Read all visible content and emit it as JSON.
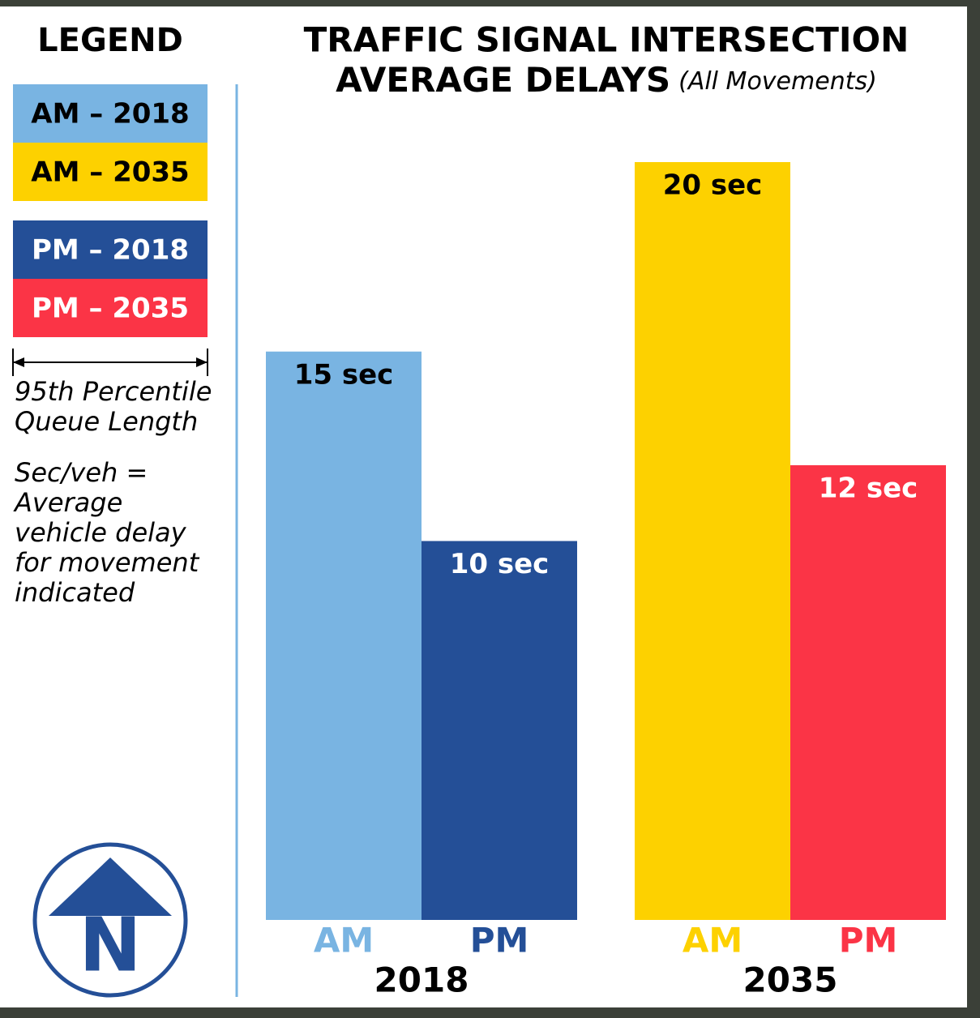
{
  "chart_data": {
    "type": "bar",
    "title": [
      "TRAFFIC SIGNAL INTERSECTION",
      "AVERAGE DELAYS"
    ],
    "subtitle": "(All Movements)",
    "categories": [
      "2018",
      "2035"
    ],
    "series": [
      {
        "name": "AM – 2018",
        "label": "AM",
        "color": "#79b4e2",
        "label_color": "#000000",
        "values": [
          15,
          null
        ],
        "value_labels": [
          "15 sec",
          null
        ]
      },
      {
        "name": "AM – 2035",
        "label": "AM",
        "color": "#fdd100",
        "label_color": "#000000",
        "values": [
          null,
          20
        ],
        "value_labels": [
          null,
          "20 sec"
        ]
      },
      {
        "name": "PM – 2018",
        "label": "PM",
        "color": "#244f97",
        "label_color": "#ffffff",
        "values": [
          10,
          null
        ],
        "value_labels": [
          "10 sec",
          null
        ]
      },
      {
        "name": "PM – 2035",
        "label": "PM",
        "color": "#fb3446",
        "label_color": "#ffffff",
        "values": [
          null,
          12
        ],
        "value_labels": [
          null,
          "12 sec"
        ]
      }
    ],
    "legend_title": "LEGEND",
    "notes": [
      [
        "95th Percentile",
        "Queue Length"
      ],
      [
        "Sec/veh =",
        "Average",
        "vehicle delay",
        "for movement",
        "indicated"
      ]
    ],
    "north_label": "N"
  }
}
